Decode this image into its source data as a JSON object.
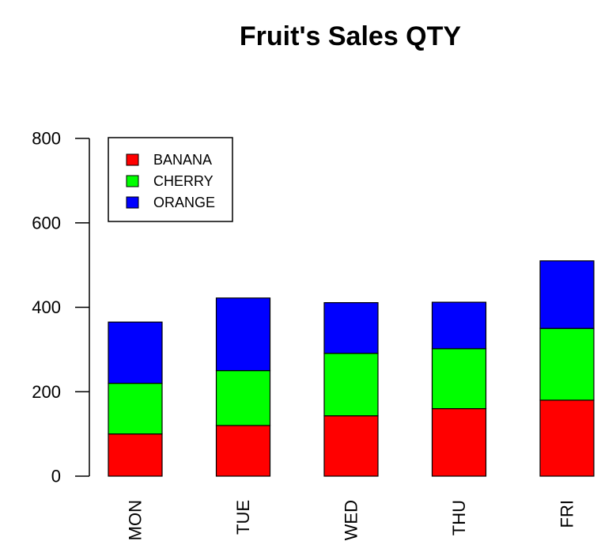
{
  "chart_data": {
    "type": "bar",
    "stacked": true,
    "title": "Fruit's Sales QTY",
    "xlabel": "",
    "ylabel": "",
    "ylim": [
      0,
      800
    ],
    "yticks": [
      0,
      200,
      400,
      600,
      800
    ],
    "categories": [
      "MON",
      "TUE",
      "WED",
      "THU",
      "FRI"
    ],
    "series": [
      {
        "name": "BANANA",
        "color": "#ff0000",
        "values": [
          100,
          120,
          143,
          160,
          180
        ]
      },
      {
        "name": "CHERRY",
        "color": "#00ff00",
        "values": [
          120,
          130,
          148,
          142,
          170
        ]
      },
      {
        "name": "ORANGE",
        "color": "#0000ff",
        "values": [
          145,
          172,
          120,
          110,
          160
        ]
      }
    ],
    "legend_position": "top-left",
    "grid": false,
    "x_tick_rotation": "vertical"
  }
}
